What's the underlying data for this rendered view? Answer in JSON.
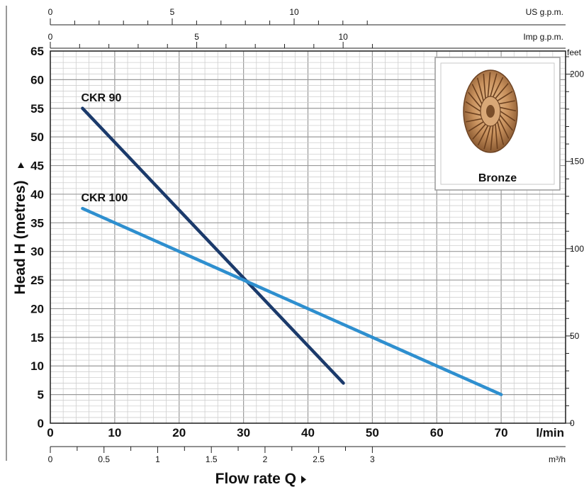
{
  "chart_data": {
    "type": "line",
    "title": "",
    "xlabel": "Flow rate Q",
    "ylabel": "Head H (metres)",
    "x_unit": "l/min",
    "xlim": [
      0,
      80
    ],
    "ylim": [
      0,
      65
    ],
    "x_ticks": [
      "0",
      "10",
      "20",
      "30",
      "40",
      "50",
      "60",
      "70"
    ],
    "y_ticks": [
      "0",
      "5",
      "10",
      "15",
      "20",
      "25",
      "30",
      "35",
      "40",
      "45",
      "50",
      "55",
      "60",
      "65"
    ],
    "grid": true,
    "series": [
      {
        "name": "CKR 90",
        "color": "#1b3a6b",
        "x": [
          5,
          45.5
        ],
        "y": [
          55,
          7
        ]
      },
      {
        "name": "CKR 100",
        "color": "#2e8fcf",
        "x": [
          5,
          70
        ],
        "y": [
          37.5,
          5
        ]
      }
    ],
    "secondary_axes": {
      "us_gpm": {
        "unit": "US g.p.m.",
        "ticks": [
          "0",
          "5",
          "10"
        ]
      },
      "imp_gpm": {
        "unit": "Imp g.p.m.",
        "ticks": [
          "0",
          "5",
          "10"
        ]
      },
      "m3h": {
        "unit": "m³/h",
        "ticks": [
          "0",
          "0.5",
          "1",
          "1.5",
          "2",
          "2.5",
          "3"
        ]
      },
      "feet": {
        "unit": "feet",
        "ticks": [
          "50",
          "100",
          "150",
          "200"
        ]
      }
    },
    "inset": {
      "caption": "Bronze",
      "icon": "bronze-impeller-icon"
    }
  }
}
